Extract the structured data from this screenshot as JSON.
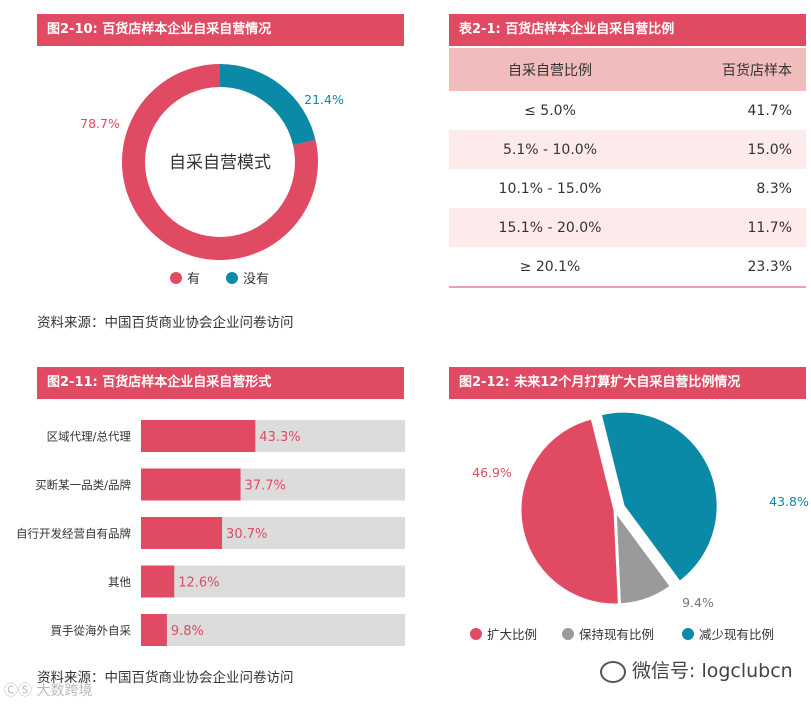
{
  "fig_2_10": {
    "title": "图2-10: 百货店样本企业自采自营情况",
    "center_label": "自采自营模式",
    "source": "资料来源：中国百货商业协会企业问卷访问",
    "colors": {
      "有": "#e04a62",
      "没有": "#0a8aa6"
    }
  },
  "table_2_1": {
    "title": "表2-1: 百货店样本企业自采自营比例",
    "headers": [
      "自采自营比例",
      "百货店样本"
    ],
    "rows": [
      {
        "range": "≤ 5.0%",
        "value": "41.7%"
      },
      {
        "range": "5.1% - 10.0%",
        "value": "15.0%"
      },
      {
        "range": "10.1% - 15.0%",
        "value": "8.3%"
      },
      {
        "range": "15.1% - 20.0%",
        "value": "11.7%"
      },
      {
        "range": "≥ 20.1%",
        "value": "23.3%"
      }
    ]
  },
  "fig_2_11": {
    "title": "图2-11: 百货店样本企业自采自营形式",
    "source": "资料来源：中国百货商业协会企业问卷访问",
    "colors": {
      "bar": "#e04a62",
      "track": "#dcdcdc"
    }
  },
  "fig_2_12": {
    "title": "图2-12: 未来12个月打算扩大自采自营比例情况",
    "colors": {
      "扩大比例": "#e04a62",
      "保持现有比例": "#9a9a9a",
      "减少现有比例": "#0a8aa6"
    }
  },
  "watermark": {
    "wechat": "微信号: logclubcn",
    "left_mark": "ⒸⓈ 大数跨境"
  },
  "chart_data": [
    {
      "type": "pie",
      "variant": "donut",
      "title": "图2-10: 百货店样本企业自采自营情况",
      "labels": [
        "有",
        "没有"
      ],
      "values": [
        78.7,
        21.4
      ],
      "value_labels": [
        "78.7%",
        "21.4%"
      ],
      "legend": [
        "有",
        "没有"
      ],
      "legend_position": "bottom"
    },
    {
      "type": "bar",
      "orientation": "horizontal",
      "title": "图2-11: 百货店样本企业自采自营形式",
      "categories": [
        "区域代理/总代理",
        "买断某一品类/品牌",
        "自行开发经营自有品牌",
        "其他",
        "買手從海外自采"
      ],
      "values": [
        43.3,
        37.7,
        30.7,
        12.6,
        9.8
      ],
      "value_labels": [
        "43.3%",
        "37.7%",
        "30.7%",
        "12.6%",
        "9.8%"
      ],
      "xlim": [
        0,
        100
      ]
    },
    {
      "type": "pie",
      "title": "图2-12: 未来12个月打算扩大自采自营比例情况",
      "labels": [
        "扩大比例",
        "保持现有比例",
        "减少现有比例"
      ],
      "values": [
        46.9,
        9.4,
        43.8
      ],
      "value_labels": [
        "46.9%",
        "9.4%",
        "43.8%"
      ],
      "legend": [
        "扩大比例",
        "保持现有比例",
        "减少现有比例"
      ],
      "legend_position": "bottom",
      "exploded": "减少现有比例"
    }
  ]
}
